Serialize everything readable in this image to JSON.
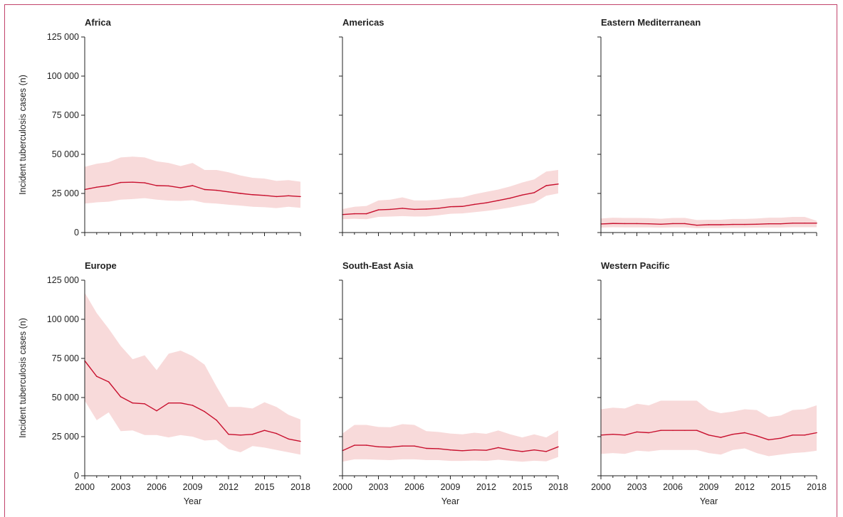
{
  "chart_data": {
    "type": "line",
    "ylabel": "Incident tuberculosis cases (n)",
    "xlabel": "Year",
    "xlim": [
      2000,
      2018
    ],
    "ylim": [
      0,
      125000
    ],
    "x_ticks": [
      2000,
      2003,
      2006,
      2009,
      2012,
      2015,
      2018
    ],
    "y_ticks": [
      0,
      25000,
      50000,
      75000,
      100000,
      125000
    ],
    "y_tick_labels": [
      "0",
      "25 000",
      "50 000",
      "75 000",
      "100 000",
      "125 000"
    ],
    "line_color": "#c8102e",
    "band_color": "#f8dada",
    "years": [
      2000,
      2001,
      2002,
      2003,
      2004,
      2005,
      2006,
      2007,
      2008,
      2009,
      2010,
      2011,
      2012,
      2013,
      2014,
      2015,
      2016,
      2017,
      2018
    ],
    "panels": [
      {
        "title": "Africa",
        "values": [
          27500,
          29000,
          30000,
          32000,
          32200,
          31800,
          30000,
          29800,
          28600,
          30000,
          27500,
          27000,
          26000,
          25000,
          24200,
          23700,
          23000,
          23500,
          23000
        ],
        "upper": [
          42000,
          44000,
          45000,
          48000,
          48500,
          48000,
          45500,
          44500,
          42500,
          44500,
          40000,
          40000,
          38500,
          36500,
          35000,
          34500,
          33000,
          33500,
          32500
        ],
        "lower": [
          18500,
          19300,
          19700,
          21000,
          21400,
          22000,
          21000,
          20400,
          20200,
          20600,
          19000,
          18500,
          17800,
          17200,
          16500,
          16200,
          15600,
          16500,
          15800
        ]
      },
      {
        "title": "Americas",
        "values": [
          11500,
          12000,
          12000,
          14500,
          14800,
          15500,
          14800,
          15000,
          15500,
          16500,
          16700,
          18000,
          19000,
          20500,
          22000,
          24000,
          25500,
          30000,
          31000
        ],
        "upper": [
          15000,
          16500,
          17000,
          20500,
          21000,
          22500,
          20500,
          20500,
          21000,
          22000,
          22500,
          24500,
          26000,
          27500,
          29500,
          32000,
          34000,
          39000,
          40000
        ],
        "lower": [
          8500,
          8800,
          8500,
          10000,
          10200,
          10500,
          10200,
          10300,
          11000,
          12000,
          12200,
          13000,
          13800,
          14800,
          16000,
          17500,
          19000,
          23500,
          25000
        ]
      },
      {
        "title": "Eastern Mediterranean",
        "values": [
          5500,
          5800,
          5700,
          5700,
          5600,
          5300,
          5700,
          5700,
          4700,
          5000,
          5000,
          5200,
          5200,
          5300,
          5600,
          5600,
          6000,
          6000,
          6000
        ],
        "upper": [
          9000,
          9500,
          9300,
          9300,
          9200,
          8800,
          9300,
          9400,
          8000,
          8200,
          8200,
          8700,
          8700,
          9000,
          9500,
          9500,
          10000,
          10000,
          7500
        ],
        "lower": [
          3200,
          3400,
          3300,
          3300,
          3300,
          3100,
          3300,
          3300,
          2800,
          2900,
          2900,
          3000,
          3000,
          3100,
          3200,
          3200,
          3400,
          3400,
          3400
        ]
      },
      {
        "title": "Europe",
        "values": [
          73500,
          63500,
          60000,
          50500,
          46500,
          46000,
          41500,
          46500,
          46500,
          45000,
          41000,
          35500,
          26500,
          26000,
          26500,
          29000,
          27000,
          23500,
          22000
        ],
        "upper": [
          117000,
          104000,
          94000,
          83000,
          74500,
          77000,
          67500,
          78000,
          80000,
          76500,
          71000,
          57000,
          44000,
          44000,
          43000,
          47000,
          44000,
          39000,
          36000
        ],
        "lower": [
          48000,
          35500,
          40500,
          28500,
          29000,
          26000,
          26000,
          24500,
          26000,
          25000,
          22500,
          23000,
          17000,
          15000,
          19000,
          18000,
          16500,
          15000,
          13500
        ]
      },
      {
        "title": "South-East Asia",
        "values": [
          16000,
          19500,
          19500,
          18500,
          18300,
          19000,
          19000,
          17500,
          17300,
          16500,
          16000,
          16500,
          16300,
          18000,
          16500,
          15500,
          16500,
          15500,
          18500
        ],
        "upper": [
          27000,
          32500,
          32500,
          31200,
          31000,
          33000,
          32500,
          28500,
          28000,
          27000,
          26500,
          27500,
          26800,
          29000,
          26500,
          24500,
          26500,
          24500,
          29000
        ],
        "lower": [
          9000,
          10500,
          10500,
          10200,
          10000,
          10500,
          10500,
          10000,
          10000,
          9500,
          9500,
          9700,
          9500,
          10200,
          9600,
          9000,
          9600,
          9200,
          12000
        ]
      },
      {
        "title": "Western Pacific",
        "values": [
          26000,
          26500,
          26000,
          28000,
          27500,
          29000,
          29000,
          29000,
          29000,
          26000,
          24500,
          26500,
          27500,
          25500,
          23000,
          24000,
          26000,
          26000,
          27500
        ],
        "upper": [
          42500,
          43500,
          43000,
          46000,
          45000,
          48000,
          48000,
          48000,
          48000,
          42000,
          40000,
          41000,
          42500,
          42000,
          37500,
          38500,
          42000,
          42500,
          45000
        ],
        "lower": [
          14000,
          14500,
          14000,
          16000,
          15500,
          16500,
          16500,
          16500,
          16500,
          14500,
          13500,
          16500,
          17500,
          14500,
          12500,
          13500,
          14500,
          15000,
          16000
        ]
      }
    ]
  }
}
